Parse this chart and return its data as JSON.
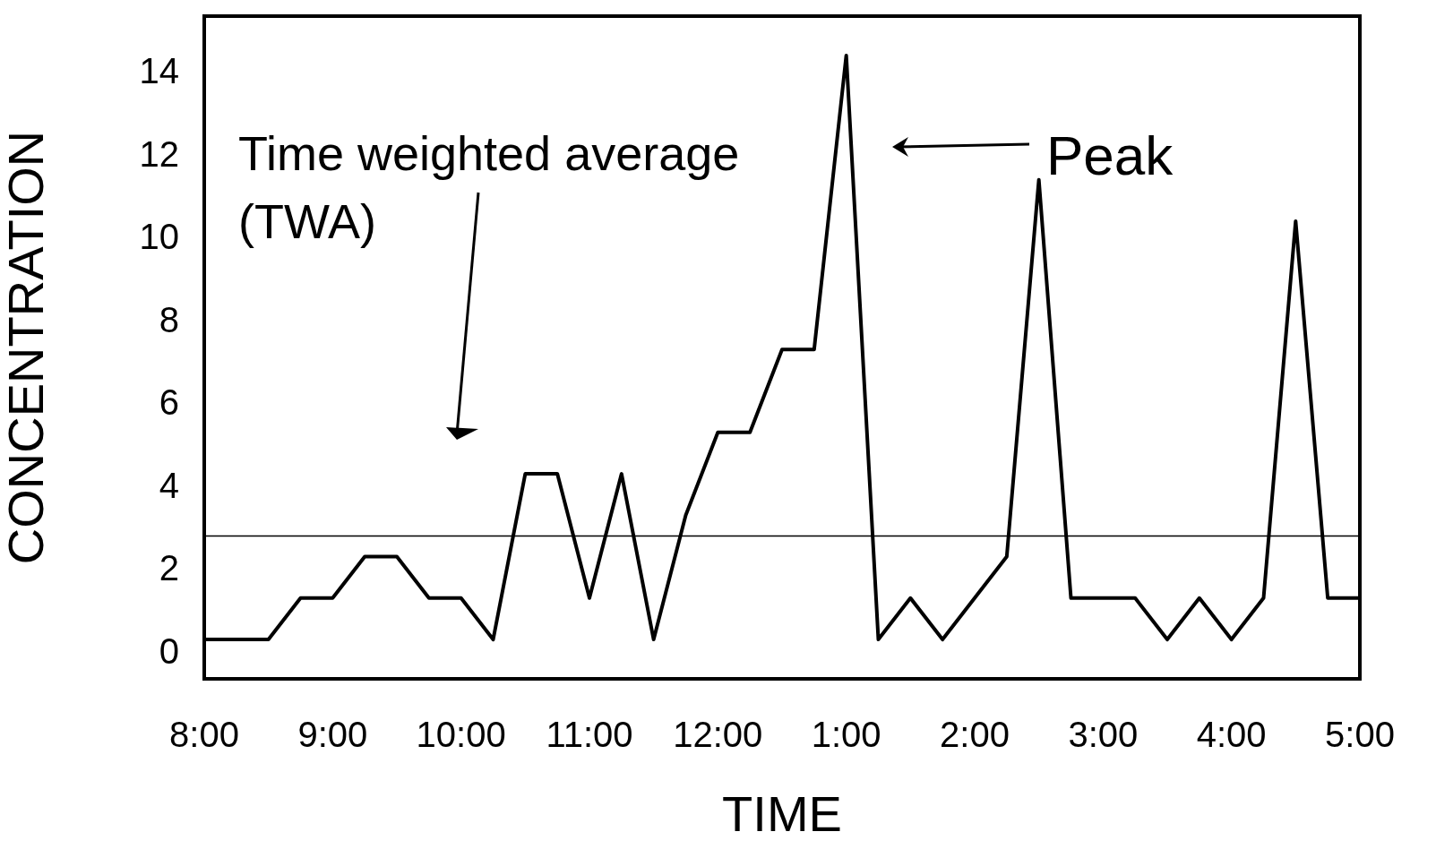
{
  "chart_data": {
    "type": "line",
    "xlabel": "TIME",
    "ylabel": "CONCENTRATION",
    "categories": [
      "8:00",
      null,
      null,
      null,
      "9:00",
      null,
      null,
      null,
      "10:00",
      null,
      null,
      null,
      "11:00",
      null,
      null,
      null,
      "12:00",
      null,
      null,
      null,
      "1:00",
      null,
      null,
      null,
      "2:00",
      null,
      null,
      null,
      "3:00",
      null,
      null,
      null,
      "4:00",
      null,
      null,
      null,
      "5:00"
    ],
    "series": [
      {
        "color": "#000000",
        "values": [
          0.4,
          0.4,
          0.4,
          1.4,
          1.4,
          2.4,
          2.4,
          1.4,
          1.4,
          0.4,
          4.4,
          4.4,
          1.4,
          4.4,
          0.4,
          3.4,
          5.4,
          5.4,
          7.4,
          7.4,
          14.5,
          0.4,
          1.4,
          0.4,
          1.4,
          2.4,
          11.5,
          1.4,
          1.4,
          1.4,
          0.4,
          1.4,
          0.4,
          1.4,
          10.5,
          1.4,
          1.4
        ]
      }
    ],
    "ylim": [
      -0.55,
      15.45
    ],
    "yticks": [
      0,
      2,
      4,
      6,
      8,
      10,
      12,
      14
    ],
    "ref_lines": [
      {
        "axis": "y",
        "value": 2.9,
        "color": "#000000"
      }
    ],
    "annotations": [
      "Time weighted average\n(TWA)",
      "Peak"
    ],
    "grid": false,
    "legend": false,
    "marker": "none",
    "line_style": "solid"
  }
}
